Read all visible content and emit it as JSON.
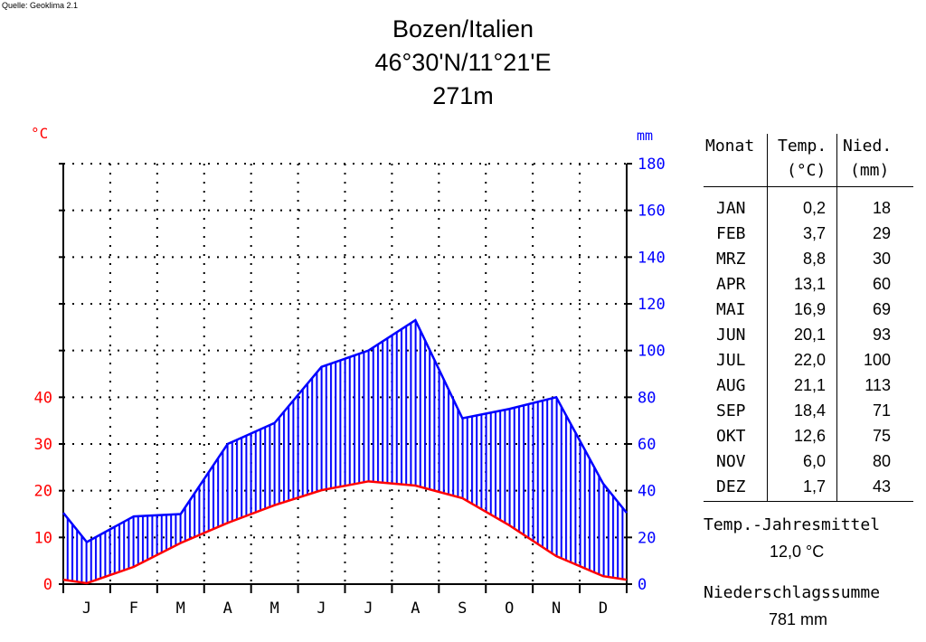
{
  "source_label": "Quelle: Geoklima 2.1",
  "title": {
    "line1": "Bozen/Italien",
    "line2": "46°30'N/11°21'E",
    "line3": "271m"
  },
  "colors": {
    "temperature": "#ff0000",
    "precipitation": "#0000ff",
    "axis": "#000000",
    "grid": "#000000"
  },
  "chart_data": {
    "type": "line",
    "left_axis_unit": "°C",
    "right_axis_unit": "mm",
    "categories": [
      "J",
      "F",
      "M",
      "A",
      "M",
      "J",
      "J",
      "A",
      "S",
      "O",
      "N",
      "D"
    ],
    "left_ticks": [
      "0",
      "10",
      "20",
      "30",
      "40"
    ],
    "right_ticks": [
      "0",
      "20",
      "40",
      "60",
      "80",
      "100",
      "120",
      "140",
      "160",
      "180"
    ],
    "temp_ylim": [
      0,
      90
    ],
    "precip_ylim": [
      0,
      180
    ],
    "series": [
      {
        "values": [
          0.2,
          3.7,
          8.8,
          13.1,
          16.9,
          20.1,
          22.0,
          21.1,
          18.4,
          12.6,
          6.0,
          1.7
        ]
      },
      {
        "values": [
          18,
          29,
          30,
          60,
          69,
          93,
          100,
          113,
          71,
          75,
          80,
          43
        ]
      }
    ],
    "grid": true
  },
  "table": {
    "headers": {
      "month": "Monat",
      "temp_1": "Temp.",
      "temp_2": "(°C)",
      "precip_1": "Nied.",
      "precip_2": "(mm)"
    },
    "rows": [
      {
        "month": "JAN",
        "temp": "0,2",
        "precip": "18"
      },
      {
        "month": "FEB",
        "temp": "3,7",
        "precip": "29"
      },
      {
        "month": "MRZ",
        "temp": "8,8",
        "precip": "30"
      },
      {
        "month": "APR",
        "temp": "13,1",
        "precip": "60"
      },
      {
        "month": "MAI",
        "temp": "16,9",
        "precip": "69"
      },
      {
        "month": "JUN",
        "temp": "20,1",
        "precip": "93"
      },
      {
        "month": "JUL",
        "temp": "22,0",
        "precip": "100"
      },
      {
        "month": "AUG",
        "temp": "21,1",
        "precip": "113"
      },
      {
        "month": "SEP",
        "temp": "18,4",
        "precip": "71"
      },
      {
        "month": "OKT",
        "temp": "12,6",
        "precip": "75"
      },
      {
        "month": "NOV",
        "temp": "6,0",
        "precip": "80"
      },
      {
        "month": "DEZ",
        "temp": "1,7",
        "precip": "43"
      }
    ]
  },
  "summary": {
    "temp_label": "Temp.-Jahresmittel",
    "temp_value": "12,0 °C",
    "precip_label": "Niederschlagssumme",
    "precip_value": "781 mm"
  }
}
